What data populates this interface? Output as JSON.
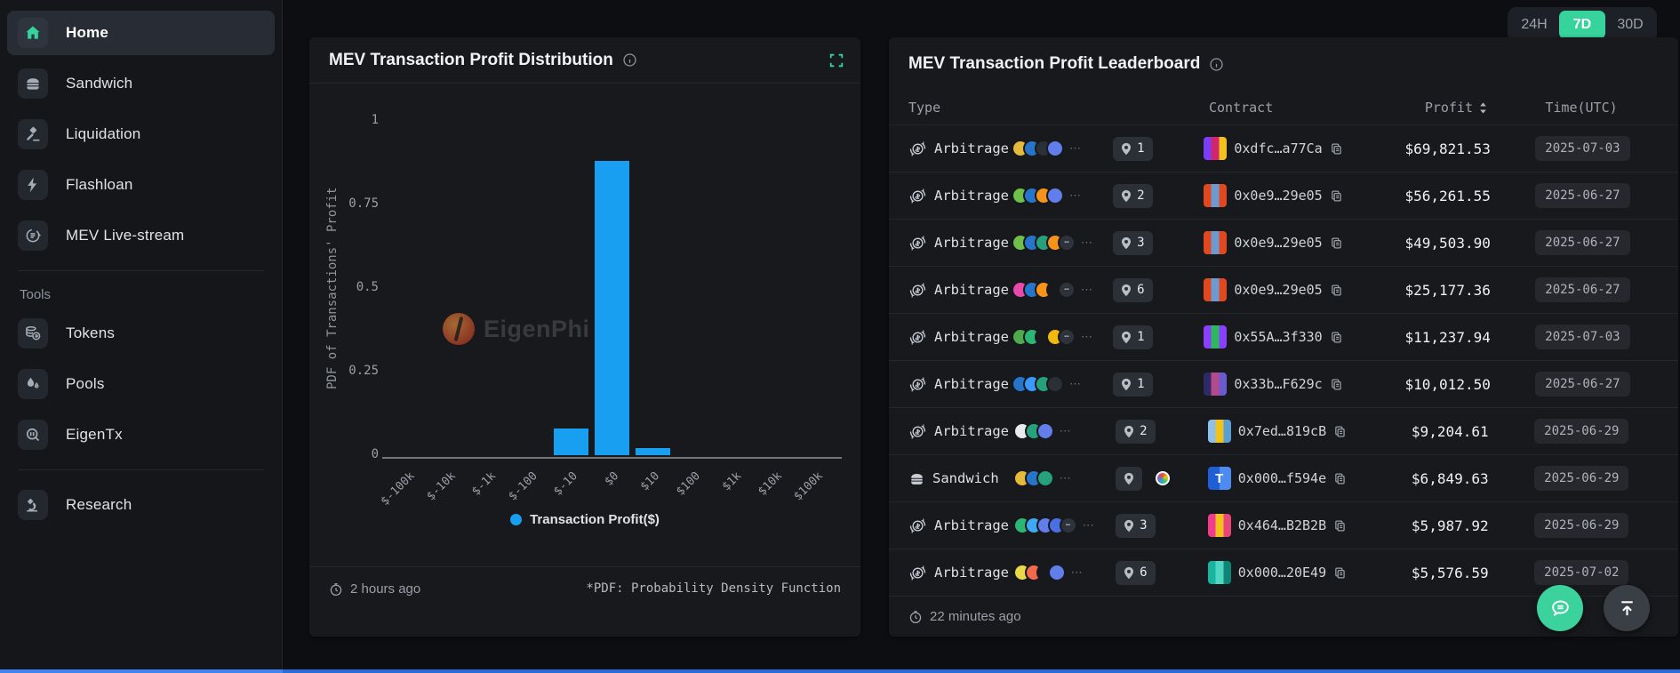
{
  "colors": {
    "accent_green": "#35D49A",
    "bar_blue": "#189FF2",
    "panel_bg": "#17191D",
    "sidebar_bg": "#14161A"
  },
  "sidebar": {
    "main_items": [
      {
        "label": "Home",
        "icon": "home-icon",
        "active": true
      },
      {
        "label": "Sandwich",
        "icon": "sandwich-icon",
        "active": false
      },
      {
        "label": "Liquidation",
        "icon": "liquidation-icon",
        "active": false
      },
      {
        "label": "Flashloan",
        "icon": "flashloan-icon",
        "active": false
      },
      {
        "label": "MEV Live-stream",
        "icon": "live-stream-icon",
        "active": false
      }
    ],
    "tools_label": "Tools",
    "tool_items": [
      {
        "label": "Tokens",
        "icon": "tokens-icon",
        "active": false
      },
      {
        "label": "Pools",
        "icon": "pools-icon",
        "active": false
      },
      {
        "label": "EigenTx",
        "icon": "eigentx-icon",
        "active": false
      }
    ],
    "bottom_items": [
      {
        "label": "Research",
        "icon": "research-icon",
        "active": false
      }
    ]
  },
  "time_range": {
    "options": [
      "24H",
      "7D",
      "30D"
    ],
    "selected": "7D"
  },
  "chart_panel": {
    "title": "MEV Transaction Profit Distribution",
    "updated": "2 hours ago",
    "footnote": "*PDF: Probability Density Function",
    "watermark": "EigenPhi"
  },
  "chart_data": {
    "type": "bar",
    "title": "MEV Transaction Profit Distribution",
    "categories": [
      "$-100k",
      "$-10k",
      "$-1k",
      "$-100",
      "$-10",
      "$0",
      "$10",
      "$100",
      "$1k",
      "$10k",
      "$100k"
    ],
    "series": [
      {
        "name": "Transaction Profit($)",
        "color": "#189FF2",
        "values": [
          0,
          0,
          0,
          0,
          0.08,
          0.88,
          0.02,
          0,
          0,
          0,
          0
        ]
      }
    ],
    "xlabel": "",
    "ylabel": "PDF of Transactions' Profit",
    "ylim": [
      0,
      1
    ],
    "yticks": [
      0,
      0.25,
      0.5,
      0.75,
      1
    ],
    "grid": false,
    "legend_position": "bottom"
  },
  "leaderboard": {
    "title": "MEV Transaction Profit Leaderboard",
    "columns": [
      "Type",
      "Contract",
      "Profit",
      "Time(UTC)"
    ],
    "updated": "22 minutes ago",
    "rows": [
      {
        "type": "Arbitrage",
        "type_icon": "arbitrage-icon",
        "tokens": [
          "#E5B93C",
          "#2775CA",
          "#2B2F36",
          "#627EEA"
        ],
        "more_circle": false,
        "pin": "1",
        "rainbow": false,
        "identicon": {
          "colors": [
            "#7A3FF2",
            "#D02670",
            "#F1C21B"
          ],
          "label": ""
        },
        "contract": "0xdfc…a77Ca",
        "profit": "$69,821.53",
        "time": "2025-07-03"
      },
      {
        "type": "Arbitrage",
        "type_icon": "arbitrage-icon",
        "tokens": [
          "#6FBF4A",
          "#2775CA",
          "#F7931A",
          "#627EEA"
        ],
        "more_circle": false,
        "pin": "2",
        "rainbow": false,
        "identicon": {
          "colors": [
            "#E0491F",
            "#6B9BD1",
            "#E0491F"
          ],
          "label": ""
        },
        "contract": "0x0e9…29e05",
        "profit": "$56,261.55",
        "time": "2025-06-27"
      },
      {
        "type": "Arbitrage",
        "type_icon": "arbitrage-icon",
        "tokens": [
          "#6FBF4A",
          "#2775CA",
          "#26A17B",
          "#F7931A"
        ],
        "more_circle": true,
        "pin": "3",
        "rainbow": false,
        "identicon": {
          "colors": [
            "#E0491F",
            "#6B9BD1",
            "#E0491F"
          ],
          "label": ""
        },
        "contract": "0x0e9…29e05",
        "profit": "$49,503.90",
        "time": "2025-06-27"
      },
      {
        "type": "Arbitrage",
        "type_icon": "arbitrage-icon",
        "tokens": [
          "#E84AA9",
          "#2775CA",
          "#F7931A",
          "#17191D"
        ],
        "more_circle": true,
        "pin": "6",
        "rainbow": false,
        "identicon": {
          "colors": [
            "#E0491F",
            "#6B9BD1",
            "#E0491F"
          ],
          "label": ""
        },
        "contract": "0x0e9…29e05",
        "profit": "$25,177.36",
        "time": "2025-06-27"
      },
      {
        "type": "Arbitrage",
        "type_icon": "arbitrage-icon",
        "tokens": [
          "#4FA94D",
          "#2BB673",
          "#17191D",
          "#F0B90B"
        ],
        "more_circle": true,
        "pin": "1",
        "rainbow": false,
        "identicon": {
          "colors": [
            "#8A3FFC",
            "#2EB85C",
            "#8A3FFC"
          ],
          "label": ""
        },
        "contract": "0x55A…3f330",
        "profit": "$11,237.94",
        "time": "2025-07-03"
      },
      {
        "type": "Arbitrage",
        "type_icon": "arbitrage-icon",
        "tokens": [
          "#2775CA",
          "#3B99FC",
          "#26A17B",
          "#2B2F36"
        ],
        "more_circle": false,
        "pin": "1",
        "rainbow": false,
        "identicon": {
          "colors": [
            "#2E2A66",
            "#B44A8E",
            "#6B5ACD"
          ],
          "label": ""
        },
        "contract": "0x33b…F629c",
        "profit": "$10,012.50",
        "time": "2025-06-27"
      },
      {
        "type": "Arbitrage",
        "type_icon": "arbitrage-icon",
        "tokens": [
          "#E9EAEC",
          "#26A17B",
          "#627EEA"
        ],
        "more_circle": false,
        "pin": "2",
        "rainbow": false,
        "identicon": {
          "colors": [
            "#8EC1EA",
            "#F1C21B",
            "#5A9FD4"
          ],
          "label": ""
        },
        "contract": "0x7ed…819cB",
        "profit": "$9,204.61",
        "time": "2025-06-29"
      },
      {
        "type": "Sandwich",
        "type_icon": "sandwich-type-icon",
        "tokens": [
          "#E5B93C",
          "#2775CA",
          "#26A17B"
        ],
        "more_circle": false,
        "pin": "",
        "rainbow": true,
        "identicon": {
          "colors": [
            "#1F5FD6",
            "#4D8BF0"
          ],
          "label": "T"
        },
        "contract": "0x000…f594e",
        "profit": "$6,849.63",
        "time": "2025-06-29"
      },
      {
        "type": "Arbitrage",
        "type_icon": "arbitrage-icon",
        "tokens": [
          "#2BB673",
          "#3FA9F5",
          "#627EEA",
          "#4A6FE3"
        ],
        "more_circle": true,
        "pin": "3",
        "rainbow": false,
        "identicon": {
          "colors": [
            "#F23B8F",
            "#F1C21B",
            "#E8457A"
          ],
          "label": ""
        },
        "contract": "0x464…B2B2B",
        "profit": "$5,987.92",
        "time": "2025-06-29"
      },
      {
        "type": "Arbitrage",
        "type_icon": "arbitrage-icon",
        "tokens": [
          "#E8D84A",
          "#F2694B",
          "#17191D",
          "#627EEA"
        ],
        "more_circle": false,
        "pin": "6",
        "rainbow": false,
        "identicon": {
          "colors": [
            "#17B5A0",
            "#52D6C4",
            "#0E8577"
          ],
          "label": ""
        },
        "contract": "0x000…20E49",
        "profit": "$5,576.59",
        "time": "2025-07-02"
      }
    ]
  }
}
